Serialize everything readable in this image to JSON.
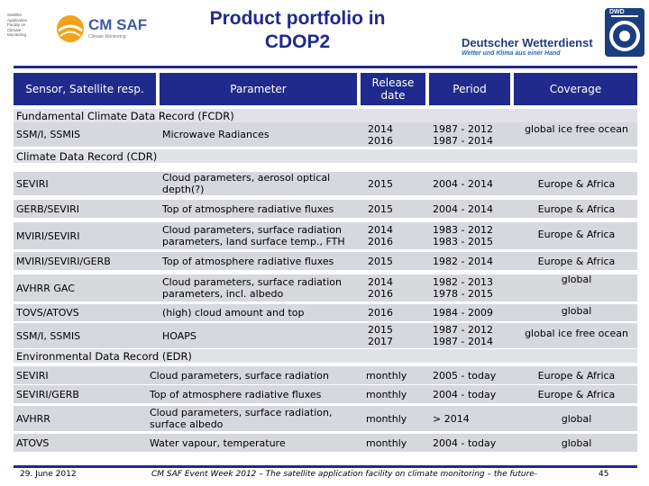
{
  "header": {
    "title_line1": "Product portfolio in",
    "title_line2": "CDOP2",
    "left_logo": {
      "small_lines": [
        "Satellite Application",
        "Facility on",
        "Climate Monitoring"
      ],
      "name": "CM SAF",
      "subline": "Climate Monitoring"
    },
    "right_logo": {
      "name": "Deutscher Wetterdienst",
      "tagline": "Wetter und Klima aus einer Hand",
      "abbr": "DWD"
    }
  },
  "table": {
    "columns": [
      "Sensor, Satellite resp.",
      "Parameter",
      "Release date",
      "Period",
      "Coverage"
    ],
    "sections": [
      {
        "label": "Fundamental Climate Data Record (FCDR)",
        "rows": [
          {
            "sensor": "SSM/I, SSMIS",
            "parameter": "Microwave Radiances",
            "release": "2014\n2016",
            "period": "1987 - 2012\n1987 - 2014",
            "coverage": "global ice free ocean"
          }
        ]
      },
      {
        "label": "Climate Data Record (CDR)",
        "rows": [
          {
            "sensor": "SEVIRI",
            "parameter": "Cloud parameters, aerosol optical depth(?)",
            "release": "2015",
            "period": "2004 - 2014",
            "coverage": "Europe & Africa"
          },
          {
            "sensor": "GERB/SEVIRI",
            "parameter": "Top of atmosphere radiative fluxes",
            "release": "2015",
            "period": "2004 - 2014",
            "coverage": "Europe & Africa"
          },
          {
            "sensor": "MVIRI/SEVIRI",
            "parameter": "Cloud parameters, surface radiation parameters, land surface temp., FTH",
            "release": "2014\n2016",
            "period": "1983 - 2012\n1983 - 2015",
            "coverage": "Europe & Africa"
          },
          {
            "sensor": "MVIRI/SEVIRI/GERB",
            "parameter": "Top of atmosphere radiative fluxes",
            "release": "2015",
            "period": "1982 - 2014",
            "coverage": "Europe & Africa"
          },
          {
            "sensor": "AVHRR GAC",
            "parameter": "Cloud parameters, surface radiation parameters, incl. albedo",
            "release": "2014\n2016",
            "period": "1982 - 2013\n1978 - 2015",
            "coverage": "global"
          },
          {
            "sensor": "TOVS/ATOVS",
            "parameter": "(high) cloud amount and top",
            "release": "2016",
            "period": "1984 - 2009",
            "coverage": "global"
          },
          {
            "sensor": "SSM/I, SSMIS",
            "parameter": "HOAPS",
            "release": "2015\n2017",
            "period": "1987 - 2012\n1987 - 2014",
            "coverage": "global ice free ocean"
          }
        ]
      },
      {
        "label": "Environmental Data Record (EDR)",
        "rows": [
          {
            "sensor": "SEVIRI",
            "parameter": "Cloud parameters, surface radiation",
            "release": "monthly",
            "period": "2005 - today",
            "coverage": "Europe & Africa"
          },
          {
            "sensor": "SEVIRI/GERB",
            "parameter": "Top of atmosphere radiative fluxes",
            "release": "monthly",
            "period": "2004 - today",
            "coverage": "Europe & Africa"
          },
          {
            "sensor": "AVHRR",
            "parameter": "Cloud parameters, surface radiation, surface albedo",
            "release": "monthly",
            "period": "> 2014",
            "coverage": "global"
          },
          {
            "sensor": "ATOVS",
            "parameter": "Water vapour, temperature",
            "release": "monthly",
            "period": "2004 - today",
            "coverage": "global"
          }
        ]
      }
    ]
  },
  "footer": {
    "date": "29. June 2012",
    "event": "CM SAF Event Week 2012 – The satellite application facility on climate monitoring – the future-",
    "page": "45"
  }
}
